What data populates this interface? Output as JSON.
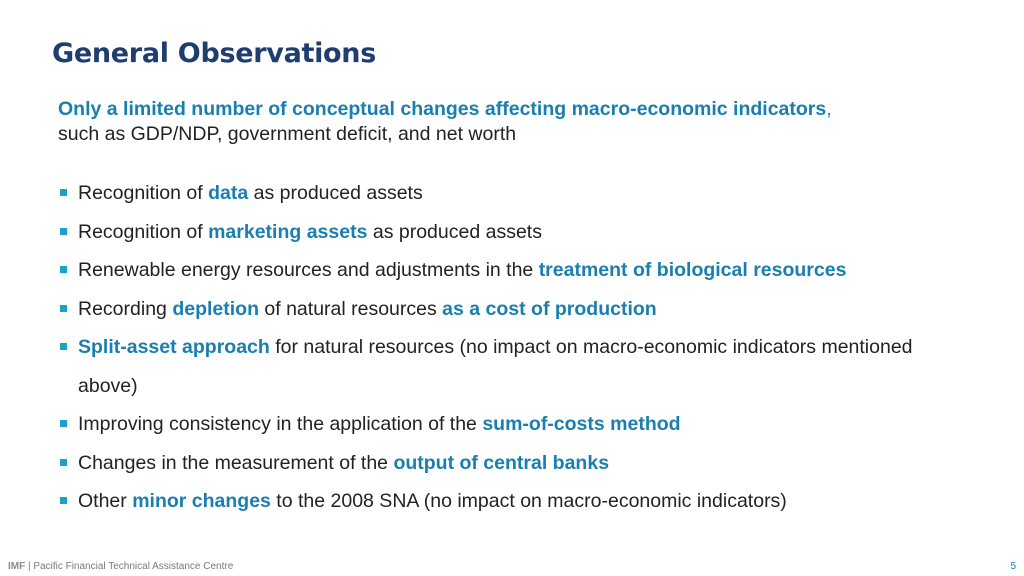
{
  "slide": {
    "title": "General Observations",
    "intro": {
      "highlight": "Only a limited number of conceptual changes affecting macro-economic indicators",
      "comma": ",",
      "rest": "such as GDP/NDP, government deficit, and net worth"
    },
    "bullets": [
      {
        "pre": "Recognition of ",
        "hl": "data",
        "post": " as produced assets"
      },
      {
        "pre": "Recognition of ",
        "hl": "marketing assets",
        "post": " as produced assets"
      },
      {
        "pre": "Renewable energy resources and adjustments in the ",
        "hl": "treatment of biological resources",
        "post": ""
      },
      {
        "pre": "Recording ",
        "hl": "depletion",
        "mid": " of natural resources ",
        "hl2": "as a cost of production"
      },
      {
        "pre": "",
        "hl": "Split-asset approach",
        "post": " for natural resources (no impact on macro-economic indicators mentioned above)"
      },
      {
        "pre": "Improving consistency in the application of the ",
        "hl": "sum-of-costs method",
        "post": ""
      },
      {
        "pre": "Changes in the measurement of the ",
        "hl": "output of central banks",
        "post": ""
      },
      {
        "pre": "Other ",
        "hl": "minor changes",
        "post": " to the 2008 SNA (no impact on macro-economic indicators)"
      }
    ]
  },
  "footer": {
    "org": "IMF",
    "separator": " | ",
    "text": "Pacific Financial Technical Assistance Centre",
    "page": "5"
  },
  "colors": {
    "title": "#1f3d6e",
    "highlight": "#1a7fb0",
    "bullet": "#1aa3c9"
  }
}
